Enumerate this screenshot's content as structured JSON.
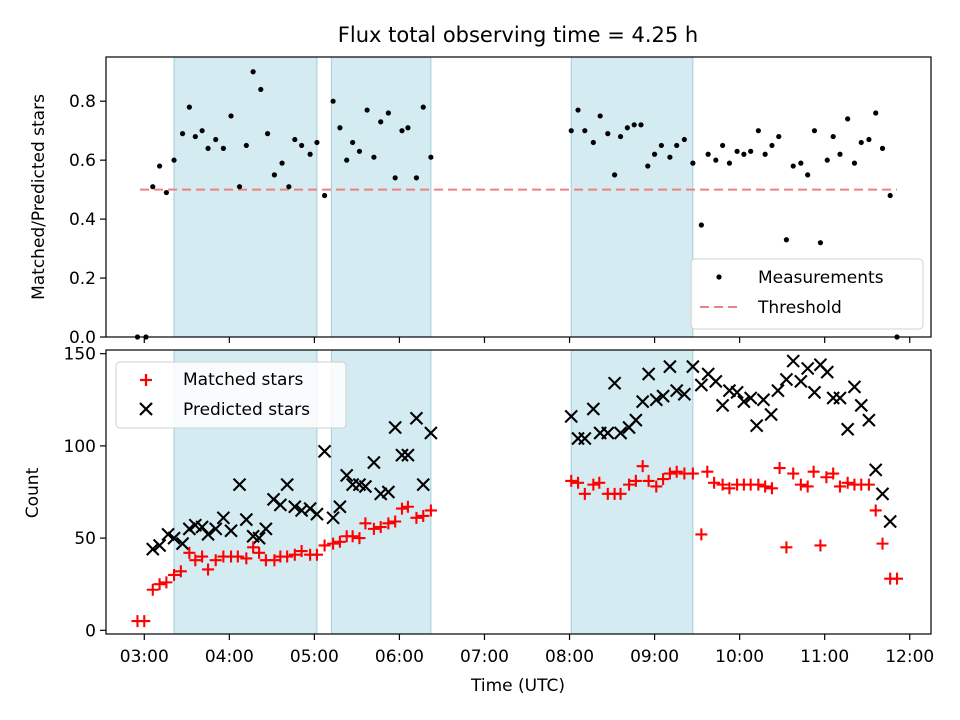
{
  "chart_data": [
    {
      "type": "scatter",
      "title": "Flux total observing time = 4.25 h",
      "xlabel": "",
      "ylabel": "Matched/Predicted stars",
      "ylim": [
        0,
        0.95
      ],
      "yticks": [
        "0.0",
        "0.2",
        "0.4",
        "0.6",
        "0.8"
      ],
      "x_range_hours": [
        2.55,
        12.25
      ],
      "shaded_intervals": [
        [
          3.35,
          5.03
        ],
        [
          5.2,
          6.37
        ],
        [
          8.02,
          9.45
        ]
      ],
      "legend": {
        "placement": "lower-right",
        "entries": [
          "Measurements",
          "Threshold"
        ]
      },
      "threshold": {
        "name": "Threshold",
        "y": 0.5,
        "x": [
          2.95,
          11.85
        ],
        "color": "#f08080"
      },
      "series": [
        {
          "name": "Measurements",
          "color": "#000000",
          "points": [
            [
              2.92,
              0.0
            ],
            [
              3.02,
              0.0
            ],
            [
              3.1,
              0.51
            ],
            [
              3.18,
              0.58
            ],
            [
              3.26,
              0.49
            ],
            [
              3.35,
              0.6
            ],
            [
              3.45,
              0.69
            ],
            [
              3.53,
              0.78
            ],
            [
              3.6,
              0.68
            ],
            [
              3.68,
              0.7
            ],
            [
              3.75,
              0.64
            ],
            [
              3.84,
              0.67
            ],
            [
              3.93,
              0.64
            ],
            [
              4.02,
              0.75
            ],
            [
              4.12,
              0.51
            ],
            [
              4.2,
              0.65
            ],
            [
              4.28,
              0.9
            ],
            [
              4.37,
              0.84
            ],
            [
              4.45,
              0.69
            ],
            [
              4.53,
              0.55
            ],
            [
              4.62,
              0.59
            ],
            [
              4.7,
              0.51
            ],
            [
              4.77,
              0.67
            ],
            [
              4.85,
              0.65
            ],
            [
              4.95,
              0.62
            ],
            [
              5.03,
              0.66
            ],
            [
              5.12,
              0.48
            ],
            [
              5.22,
              0.8
            ],
            [
              5.3,
              0.71
            ],
            [
              5.38,
              0.6
            ],
            [
              5.45,
              0.66
            ],
            [
              5.53,
              0.63
            ],
            [
              5.62,
              0.77
            ],
            [
              5.7,
              0.61
            ],
            [
              5.78,
              0.73
            ],
            [
              5.87,
              0.76
            ],
            [
              5.95,
              0.54
            ],
            [
              6.03,
              0.7
            ],
            [
              6.1,
              0.71
            ],
            [
              6.2,
              0.54
            ],
            [
              6.28,
              0.78
            ],
            [
              6.37,
              0.61
            ],
            [
              8.02,
              0.7
            ],
            [
              8.1,
              0.77
            ],
            [
              8.18,
              0.7
            ],
            [
              8.28,
              0.66
            ],
            [
              8.36,
              0.75
            ],
            [
              8.45,
              0.69
            ],
            [
              8.53,
              0.55
            ],
            [
              8.6,
              0.68
            ],
            [
              8.68,
              0.71
            ],
            [
              8.76,
              0.72
            ],
            [
              8.84,
              0.72
            ],
            [
              8.92,
              0.58
            ],
            [
              9.0,
              0.62
            ],
            [
              9.08,
              0.65
            ],
            [
              9.18,
              0.61
            ],
            [
              9.26,
              0.65
            ],
            [
              9.35,
              0.67
            ],
            [
              9.45,
              0.59
            ],
            [
              9.55,
              0.38
            ],
            [
              9.63,
              0.62
            ],
            [
              9.72,
              0.6
            ],
            [
              9.8,
              0.65
            ],
            [
              9.88,
              0.59
            ],
            [
              9.97,
              0.63
            ],
            [
              10.05,
              0.62
            ],
            [
              10.13,
              0.63
            ],
            [
              10.22,
              0.7
            ],
            [
              10.3,
              0.62
            ],
            [
              10.38,
              0.65
            ],
            [
              10.46,
              0.68
            ],
            [
              10.55,
              0.33
            ],
            [
              10.63,
              0.58
            ],
            [
              10.72,
              0.59
            ],
            [
              10.8,
              0.55
            ],
            [
              10.88,
              0.7
            ],
            [
              10.95,
              0.32
            ],
            [
              11.03,
              0.6
            ],
            [
              11.1,
              0.68
            ],
            [
              11.18,
              0.62
            ],
            [
              11.27,
              0.74
            ],
            [
              11.35,
              0.59
            ],
            [
              11.43,
              0.66
            ],
            [
              11.52,
              0.67
            ],
            [
              11.6,
              0.76
            ],
            [
              11.68,
              0.64
            ],
            [
              11.77,
              0.48
            ],
            [
              11.85,
              0.0
            ]
          ]
        }
      ]
    },
    {
      "type": "scatter",
      "title": "",
      "xlabel": "Time (UTC)",
      "ylabel": "Count",
      "ylim": [
        -2,
        152
      ],
      "yticks": [
        "0",
        "50",
        "100",
        "150"
      ],
      "x_range_hours": [
        2.55,
        12.25
      ],
      "xticks": [
        "03:00",
        "04:00",
        "05:00",
        "06:00",
        "07:00",
        "08:00",
        "09:00",
        "10:00",
        "11:00",
        "12:00"
      ],
      "shaded_intervals": [
        [
          3.35,
          5.03
        ],
        [
          5.2,
          6.37
        ],
        [
          8.02,
          9.45
        ]
      ],
      "legend": {
        "placement": "upper-left",
        "entries": [
          "Matched stars",
          "Predicted stars"
        ]
      },
      "series": [
        {
          "name": "Matched stars",
          "marker": "plus",
          "color": "#ff0000",
          "points": [
            [
              2.92,
              5
            ],
            [
              3.0,
              5
            ],
            [
              3.1,
              22
            ],
            [
              3.18,
              25
            ],
            [
              3.26,
              26
            ],
            [
              3.35,
              30
            ],
            [
              3.43,
              32
            ],
            [
              3.53,
              42
            ],
            [
              3.6,
              38
            ],
            [
              3.68,
              40
            ],
            [
              3.75,
              33
            ],
            [
              3.84,
              38
            ],
            [
              3.93,
              40
            ],
            [
              4.02,
              40
            ],
            [
              4.1,
              40
            ],
            [
              4.2,
              39
            ],
            [
              4.28,
              45
            ],
            [
              4.35,
              42
            ],
            [
              4.43,
              38
            ],
            [
              4.53,
              38
            ],
            [
              4.6,
              40
            ],
            [
              4.68,
              40
            ],
            [
              4.77,
              41
            ],
            [
              4.85,
              43
            ],
            [
              4.95,
              41
            ],
            [
              5.03,
              41
            ],
            [
              5.12,
              46
            ],
            [
              5.22,
              47
            ],
            [
              5.3,
              48
            ],
            [
              5.38,
              51
            ],
            [
              5.45,
              51
            ],
            [
              5.53,
              50
            ],
            [
              5.6,
              58
            ],
            [
              5.7,
              55
            ],
            [
              5.78,
              56
            ],
            [
              5.87,
              58
            ],
            [
              5.95,
              59
            ],
            [
              6.03,
              66
            ],
            [
              6.1,
              67
            ],
            [
              6.2,
              61
            ],
            [
              6.28,
              62
            ],
            [
              6.37,
              65
            ],
            [
              8.02,
              81
            ],
            [
              8.1,
              80
            ],
            [
              8.18,
              74
            ],
            [
              8.28,
              79
            ],
            [
              8.35,
              80
            ],
            [
              8.45,
              74
            ],
            [
              8.53,
              74
            ],
            [
              8.6,
              74
            ],
            [
              8.7,
              79
            ],
            [
              8.78,
              81
            ],
            [
              8.86,
              89
            ],
            [
              8.93,
              81
            ],
            [
              9.02,
              78
            ],
            [
              9.1,
              82
            ],
            [
              9.18,
              85
            ],
            [
              9.26,
              86
            ],
            [
              9.35,
              85
            ],
            [
              9.45,
              85
            ],
            [
              9.55,
              52
            ],
            [
              9.62,
              86
            ],
            [
              9.7,
              80
            ],
            [
              9.8,
              79
            ],
            [
              9.88,
              77
            ],
            [
              9.97,
              79
            ],
            [
              10.05,
              79
            ],
            [
              10.13,
              79
            ],
            [
              10.22,
              79
            ],
            [
              10.3,
              78
            ],
            [
              10.38,
              77
            ],
            [
              10.47,
              88
            ],
            [
              10.55,
              45
            ],
            [
              10.63,
              85
            ],
            [
              10.72,
              79
            ],
            [
              10.8,
              78
            ],
            [
              10.87,
              86
            ],
            [
              10.95,
              46
            ],
            [
              11.02,
              83
            ],
            [
              11.1,
              85
            ],
            [
              11.18,
              78
            ],
            [
              11.27,
              80
            ],
            [
              11.35,
              79
            ],
            [
              11.43,
              79
            ],
            [
              11.52,
              79
            ],
            [
              11.6,
              65
            ],
            [
              11.68,
              47
            ],
            [
              11.77,
              28
            ],
            [
              11.85,
              28
            ]
          ]
        },
        {
          "name": "Predicted stars",
          "marker": "x",
          "color": "#000000",
          "points": [
            [
              3.1,
              44
            ],
            [
              3.18,
              46
            ],
            [
              3.28,
              52
            ],
            [
              3.35,
              50
            ],
            [
              3.45,
              47
            ],
            [
              3.53,
              55
            ],
            [
              3.6,
              57
            ],
            [
              3.68,
              56
            ],
            [
              3.75,
              52
            ],
            [
              3.84,
              55
            ],
            [
              3.93,
              61
            ],
            [
              4.02,
              54
            ],
            [
              4.12,
              79
            ],
            [
              4.2,
              60
            ],
            [
              4.28,
              51
            ],
            [
              4.35,
              50
            ],
            [
              4.43,
              55
            ],
            [
              4.52,
              71
            ],
            [
              4.6,
              68
            ],
            [
              4.68,
              79
            ],
            [
              4.77,
              67
            ],
            [
              4.85,
              65
            ],
            [
              4.95,
              66
            ],
            [
              5.03,
              63
            ],
            [
              5.12,
              97
            ],
            [
              5.22,
              61
            ],
            [
              5.3,
              67
            ],
            [
              5.38,
              84
            ],
            [
              5.45,
              79
            ],
            [
              5.53,
              79
            ],
            [
              5.6,
              78
            ],
            [
              5.7,
              91
            ],
            [
              5.78,
              74
            ],
            [
              5.87,
              75
            ],
            [
              5.95,
              110
            ],
            [
              6.03,
              95
            ],
            [
              6.1,
              95
            ],
            [
              6.2,
              115
            ],
            [
              6.28,
              79
            ],
            [
              6.37,
              107
            ],
            [
              8.02,
              116
            ],
            [
              8.1,
              104
            ],
            [
              8.18,
              104
            ],
            [
              8.28,
              120
            ],
            [
              8.36,
              107
            ],
            [
              8.45,
              107
            ],
            [
              8.53,
              134
            ],
            [
              8.6,
              107
            ],
            [
              8.7,
              110
            ],
            [
              8.78,
              114
            ],
            [
              8.86,
              124
            ],
            [
              8.93,
              139
            ],
            [
              9.02,
              125
            ],
            [
              9.1,
              127
            ],
            [
              9.18,
              143
            ],
            [
              9.26,
              130
            ],
            [
              9.35,
              128
            ],
            [
              9.45,
              143
            ],
            [
              9.55,
              133
            ],
            [
              9.63,
              139
            ],
            [
              9.72,
              135
            ],
            [
              9.8,
              122
            ],
            [
              9.88,
              130
            ],
            [
              9.97,
              129
            ],
            [
              10.05,
              124
            ],
            [
              10.13,
              126
            ],
            [
              10.2,
              111
            ],
            [
              10.28,
              125
            ],
            [
              10.37,
              117
            ],
            [
              10.45,
              130
            ],
            [
              10.55,
              136
            ],
            [
              10.63,
              146
            ],
            [
              10.72,
              135
            ],
            [
              10.8,
              142
            ],
            [
              10.88,
              129
            ],
            [
              10.95,
              144
            ],
            [
              11.03,
              140
            ],
            [
              11.1,
              126
            ],
            [
              11.18,
              126
            ],
            [
              11.27,
              109
            ],
            [
              11.35,
              132
            ],
            [
              11.43,
              122
            ],
            [
              11.52,
              114
            ],
            [
              11.6,
              87
            ],
            [
              11.68,
              74
            ],
            [
              11.77,
              59
            ]
          ]
        }
      ]
    }
  ]
}
